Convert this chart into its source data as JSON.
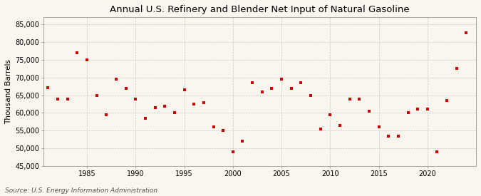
{
  "title": "Annual U.S. Refinery and Blender Net Input of Natural Gasoline",
  "ylabel": "Thousand Barrels",
  "source": "Source: U.S. Energy Information Administration",
  "background_color": "#faf6ee",
  "marker_color": "#cc0000",
  "years": [
    1981,
    1982,
    1983,
    1984,
    1985,
    1986,
    1987,
    1988,
    1989,
    1990,
    1991,
    1992,
    1993,
    1994,
    1995,
    1996,
    1997,
    1998,
    1999,
    2000,
    2001,
    2002,
    2003,
    2004,
    2005,
    2006,
    2007,
    2008,
    2009,
    2010,
    2011,
    2012,
    2013,
    2014,
    2015,
    2016,
    2017,
    2018,
    2019,
    2020,
    2021,
    2022,
    2023,
    2024
  ],
  "values": [
    67200,
    64000,
    64000,
    77000,
    75000,
    65000,
    59500,
    69500,
    67000,
    64000,
    58500,
    61500,
    62000,
    60000,
    66500,
    62500,
    63000,
    56000,
    55000,
    49000,
    52000,
    68500,
    66000,
    67000,
    69500,
    67000,
    68500,
    65000,
    55500,
    59500,
    56500,
    64000,
    64000,
    60500,
    56000,
    53500,
    53500,
    60000,
    61000,
    61000,
    49000,
    63500,
    72500,
    82500
  ],
  "ylim": [
    45000,
    87000
  ],
  "yticks": [
    45000,
    50000,
    55000,
    60000,
    65000,
    70000,
    75000,
    80000,
    85000
  ],
  "xlim": [
    1980.5,
    2025
  ],
  "xticks": [
    1985,
    1990,
    1995,
    2000,
    2005,
    2010,
    2015,
    2020
  ],
  "grid_color": "#c8c8c8",
  "title_fontsize": 9.5,
  "label_fontsize": 7.5,
  "tick_fontsize": 7,
  "source_fontsize": 6.5,
  "marker_size": 3.5
}
